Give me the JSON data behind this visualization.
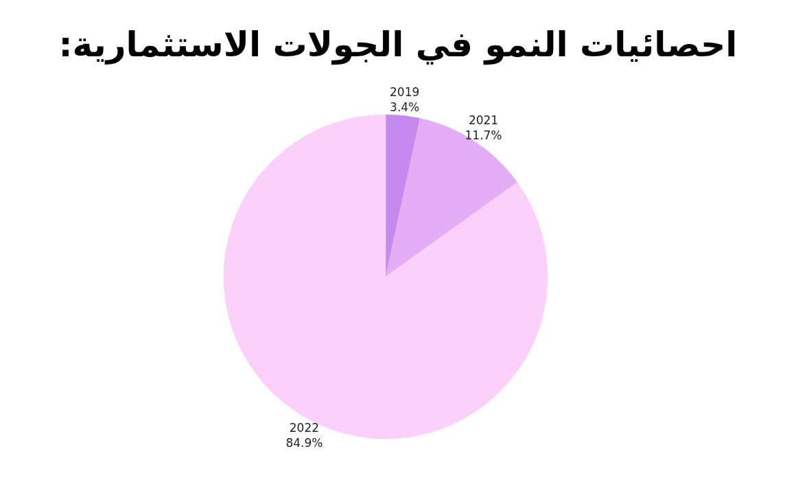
{
  "chart_data": {
    "type": "pie",
    "title": "احصائيات النمو في الجولات الاستثمارية:",
    "categories": [
      "2019",
      "2021",
      "2022"
    ],
    "values": [
      3.4,
      11.7,
      84.9
    ],
    "colors": [
      "#c48af0",
      "#e4aef6",
      "#fbd0fb"
    ],
    "value_labels": [
      "3.4%",
      "11.7%",
      "84.9%"
    ]
  }
}
